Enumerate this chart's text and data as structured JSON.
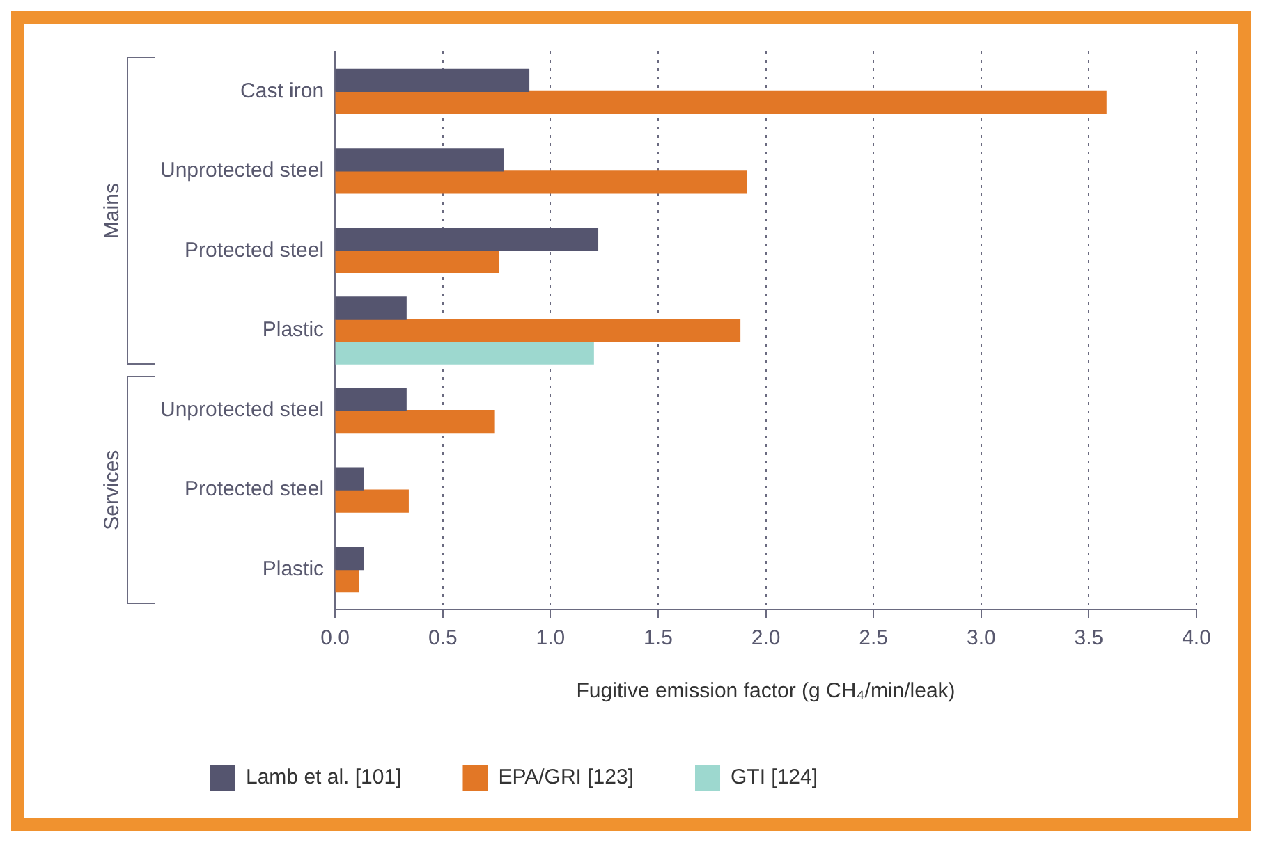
{
  "chart_data": {
    "type": "bar",
    "orientation": "horizontal",
    "categories": [
      "Cast iron",
      "Unprotected steel",
      "Protected steel",
      "Plastic",
      "Unprotected steel",
      "Protected steel",
      "Plastic"
    ],
    "series": [
      {
        "name": "Lamb et al. [101]",
        "color": "#55556f",
        "values": [
          0.9,
          0.78,
          1.22,
          0.33,
          0.33,
          0.13,
          0.13
        ]
      },
      {
        "name": "EPA/GRI [123]",
        "color": "#e27726",
        "values": [
          3.58,
          1.91,
          0.76,
          1.88,
          0.74,
          0.34,
          0.11
        ]
      },
      {
        "name": "GTI [124]",
        "color": "#9dd8cf",
        "values": [
          null,
          null,
          null,
          1.2,
          null,
          null,
          null
        ]
      }
    ],
    "xlim": [
      0,
      4
    ],
    "xticks": [
      {
        "value": 0,
        "label": "0.0"
      },
      {
        "value": 0.5,
        "label": "0.5"
      },
      {
        "value": 1,
        "label": "1.0"
      },
      {
        "value": 1.5,
        "label": "1.5"
      },
      {
        "value": 2,
        "label": "2.0"
      },
      {
        "value": 2.5,
        "label": "2.5"
      },
      {
        "value": 3,
        "label": "3.0"
      },
      {
        "value": 3.5,
        "label": "3.5"
      },
      {
        "value": 4,
        "label": "4.0"
      }
    ],
    "xlabel": "Fugitive emission factor (g CH₄/min/leak)",
    "grid": "x",
    "legend": "bottom",
    "annotations": [
      "Mains",
      "Services"
    ]
  }
}
